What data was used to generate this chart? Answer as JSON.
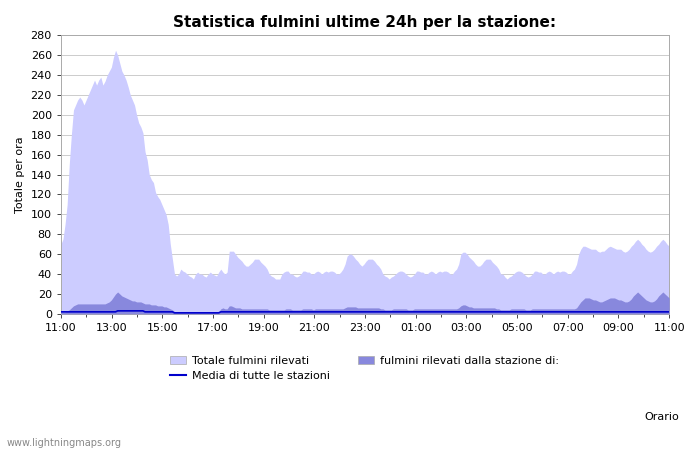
{
  "title": "Statistica fulmini ultime 24h per la stazione:",
  "xlabel": "Orario",
  "ylabel": "Totale per ora",
  "xlim_labels": [
    "11:00",
    "13:00",
    "15:00",
    "17:00",
    "19:00",
    "21:00",
    "23:00",
    "01:00",
    "03:00",
    "05:00",
    "07:00",
    "09:00",
    "11:00"
  ],
  "ylim": [
    0,
    280
  ],
  "yticks": [
    0,
    20,
    40,
    60,
    80,
    100,
    120,
    140,
    160,
    180,
    200,
    220,
    240,
    260,
    280
  ],
  "background_color": "#ffffff",
  "plot_background": "#ffffff",
  "grid_color": "#cccccc",
  "watermark": "www.lightningmaps.org",
  "legend": {
    "label1": "Totale fulmini rilevati",
    "label2": "fulmini rilevati dalla stazione di:",
    "label3": "Media di tutte le stazioni",
    "color1": "#ccccff",
    "color2": "#8888dd",
    "color3": "#0000cc"
  },
  "total_values": [
    70,
    75,
    90,
    110,
    150,
    180,
    205,
    210,
    215,
    218,
    215,
    210,
    215,
    220,
    225,
    230,
    235,
    230,
    235,
    238,
    230,
    234,
    240,
    244,
    248,
    258,
    265,
    260,
    252,
    244,
    240,
    235,
    228,
    220,
    215,
    210,
    200,
    192,
    188,
    182,
    163,
    155,
    140,
    135,
    132,
    122,
    118,
    115,
    110,
    105,
    100,
    90,
    70,
    55,
    40,
    38,
    40,
    45,
    43,
    42,
    40,
    38,
    37,
    35,
    40,
    42,
    40,
    40,
    38,
    37,
    40,
    42,
    40,
    39,
    38,
    42,
    45,
    42,
    40,
    42,
    63,
    63,
    63,
    60,
    57,
    55,
    53,
    50,
    48,
    48,
    50,
    52,
    55,
    55,
    55,
    52,
    50,
    48,
    45,
    40,
    38,
    37,
    35,
    35,
    35,
    40,
    42,
    43,
    43,
    40,
    40,
    38,
    37,
    38,
    40,
    43,
    43,
    42,
    42,
    40,
    40,
    42,
    43,
    42,
    40,
    42,
    43,
    42,
    43,
    43,
    42,
    40,
    40,
    42,
    45,
    50,
    58,
    60,
    60,
    58,
    55,
    53,
    50,
    48,
    50,
    53,
    55,
    55,
    55,
    53,
    50,
    48,
    45,
    40,
    38,
    37,
    35,
    37,
    38,
    40,
    42,
    43,
    43,
    42,
    40,
    38,
    37,
    38,
    40,
    43,
    43,
    42,
    42,
    40,
    40,
    42,
    43,
    42,
    40,
    42,
    43,
    42,
    43,
    43,
    42,
    40,
    40,
    43,
    45,
    50,
    60,
    62,
    62,
    60,
    57,
    55,
    53,
    50,
    48,
    48,
    50,
    53,
    55,
    55,
    55,
    52,
    50,
    48,
    45,
    40,
    40,
    37,
    35,
    37,
    38,
    40,
    42,
    43,
    43,
    42,
    40,
    38,
    37,
    38,
    40,
    43,
    43,
    42,
    42,
    40,
    40,
    42,
    43,
    42,
    40,
    42,
    43,
    42,
    43,
    43,
    42,
    40,
    40,
    43,
    45,
    50,
    60,
    65,
    68,
    68,
    67,
    66,
    65,
    65,
    65,
    63,
    62,
    63,
    63,
    65,
    67,
    68,
    67,
    66,
    65,
    65,
    65,
    63,
    62,
    63,
    65,
    68,
    70,
    73,
    75,
    73,
    70,
    68,
    65,
    63,
    62,
    63,
    65,
    68,
    70,
    73,
    75,
    73,
    70,
    68
  ],
  "station_values": [
    2,
    2,
    2,
    3,
    4,
    6,
    8,
    9,
    10,
    10,
    10,
    10,
    10,
    10,
    10,
    10,
    10,
    10,
    10,
    10,
    10,
    10,
    11,
    12,
    14,
    17,
    20,
    22,
    20,
    18,
    17,
    16,
    15,
    14,
    13,
    13,
    12,
    12,
    12,
    11,
    10,
    10,
    10,
    9,
    9,
    9,
    8,
    8,
    8,
    7,
    7,
    6,
    5,
    4,
    2,
    2,
    2,
    2,
    2,
    2,
    2,
    2,
    2,
    2,
    2,
    2,
    2,
    2,
    2,
    2,
    2,
    2,
    2,
    2,
    2,
    2,
    5,
    6,
    5,
    5,
    8,
    8,
    7,
    6,
    6,
    6,
    5,
    5,
    5,
    5,
    5,
    5,
    5,
    5,
    5,
    5,
    5,
    5,
    5,
    4,
    4,
    4,
    4,
    4,
    4,
    4,
    4,
    5,
    5,
    5,
    4,
    4,
    4,
    4,
    4,
    5,
    5,
    5,
    5,
    5,
    4,
    5,
    5,
    5,
    5,
    5,
    5,
    5,
    5,
    5,
    5,
    5,
    5,
    5,
    5,
    6,
    7,
    7,
    7,
    7,
    7,
    6,
    6,
    6,
    6,
    6,
    6,
    6,
    6,
    6,
    6,
    6,
    5,
    5,
    4,
    4,
    4,
    4,
    5,
    5,
    5,
    5,
    5,
    5,
    5,
    4,
    4,
    4,
    5,
    5,
    5,
    5,
    5,
    5,
    5,
    5,
    5,
    5,
    5,
    5,
    5,
    5,
    5,
    5,
    5,
    5,
    5,
    5,
    5,
    6,
    8,
    9,
    9,
    8,
    7,
    7,
    6,
    6,
    6,
    6,
    6,
    6,
    6,
    6,
    6,
    6,
    6,
    5,
    5,
    4,
    4,
    4,
    4,
    4,
    5,
    5,
    5,
    5,
    5,
    5,
    5,
    4,
    4,
    4,
    5,
    5,
    5,
    5,
    5,
    5,
    5,
    5,
    5,
    5,
    5,
    5,
    5,
    5,
    5,
    5,
    5,
    5,
    5,
    5,
    5,
    6,
    9,
    12,
    14,
    16,
    16,
    16,
    15,
    14,
    14,
    13,
    12,
    12,
    13,
    14,
    15,
    16,
    16,
    16,
    15,
    14,
    14,
    13,
    12,
    12,
    13,
    15,
    18,
    20,
    22,
    20,
    18,
    16,
    14,
    13,
    12,
    12,
    13,
    15,
    18,
    20,
    22,
    20,
    18,
    16
  ],
  "n_points": 290,
  "media_values": [
    2,
    2,
    2,
    2,
    2,
    2,
    2,
    2,
    2,
    2,
    2,
    2,
    2,
    2,
    2,
    2,
    2,
    2,
    2,
    2,
    2,
    2,
    2,
    2,
    2,
    2,
    2,
    3,
    3,
    3,
    3,
    3,
    3,
    3,
    3,
    3,
    3,
    3,
    3,
    3,
    2,
    2,
    2,
    2,
    2,
    2,
    2,
    2,
    2,
    2,
    2,
    2,
    2,
    2,
    1,
    1,
    1,
    1,
    1,
    1,
    1,
    1,
    1,
    1,
    1,
    1,
    1,
    1,
    1,
    1,
    1,
    1,
    1,
    1,
    1,
    1,
    2,
    2,
    2,
    2,
    2,
    2,
    2,
    2,
    2,
    2,
    2,
    2,
    2,
    2,
    2,
    2,
    2,
    2,
    2,
    2,
    2,
    2,
    2,
    2,
    2,
    2,
    2,
    2,
    2,
    2,
    2,
    2,
    2,
    2,
    2,
    2,
    2,
    2,
    2,
    2,
    2,
    2,
    2,
    2,
    2,
    2,
    2,
    2,
    2,
    2,
    2,
    2,
    2,
    2,
    2,
    2,
    2,
    2,
    2,
    2,
    2,
    2,
    2,
    2,
    2,
    2,
    2,
    2,
    2,
    2,
    2,
    2,
    2,
    2,
    2,
    2,
    2,
    2,
    2,
    2,
    2,
    2,
    2,
    2,
    2,
    2,
    2,
    2,
    2,
    2,
    2,
    2,
    2,
    2,
    2,
    2,
    2,
    2,
    2,
    2,
    2,
    2,
    2,
    2,
    2,
    2,
    2,
    2,
    2,
    2,
    2,
    2,
    2,
    2,
    2,
    2,
    2,
    2,
    2,
    2,
    2,
    2,
    2,
    2,
    2,
    2,
    2,
    2,
    2,
    2,
    2,
    2,
    2,
    2,
    2,
    2,
    2,
    2,
    2,
    2,
    2,
    2,
    2,
    2,
    2,
    2,
    2,
    2,
    2,
    2,
    2,
    2,
    2,
    2,
    2,
    2,
    2,
    2,
    2,
    2,
    2,
    2,
    2,
    2,
    2,
    2,
    2,
    2,
    2,
    2,
    2,
    2,
    2,
    2,
    2,
    2,
    2,
    2,
    2,
    2,
    2,
    2,
    2,
    2,
    2,
    2,
    2,
    2,
    2,
    2,
    2,
    2,
    2,
    2,
    2,
    2,
    2,
    2,
    2,
    2,
    2,
    2,
    2,
    2,
    2,
    2,
    2,
    2,
    2,
    2,
    2,
    2,
    2,
    2
  ],
  "title_fontsize": 11,
  "axis_fontsize": 8,
  "label_fontsize": 8,
  "watermark_fontsize": 7
}
